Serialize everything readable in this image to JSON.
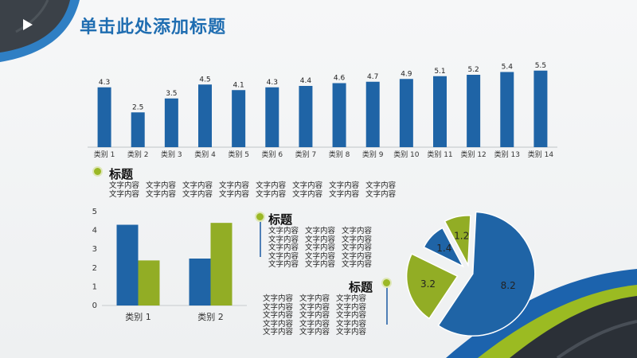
{
  "title": "单击此处添加标题",
  "colors": {
    "blue": "#1f64a6",
    "green": "#92ad25",
    "title": "#1f6db1"
  },
  "icons": {
    "play": "play-triangle-icon"
  },
  "chart_data": [
    {
      "type": "bar",
      "categories": [
        "类别 1",
        "类别 2",
        "类别 3",
        "类别 4",
        "类别 5",
        "类别 6",
        "类别 7",
        "类别 8",
        "类别 9",
        "类别 10",
        "类别 11",
        "类别 12",
        "类别 13",
        "类别 14"
      ],
      "values": [
        4.3,
        2.5,
        3.5,
        4.5,
        4.1,
        4.3,
        4.4,
        4.6,
        4.7,
        4.9,
        5.1,
        5.2,
        5.4,
        5.5
      ],
      "value_labels": [
        "4.3",
        "2.5",
        "3.5",
        "4.5",
        "4.1",
        "4.3",
        "4.4",
        "4.6",
        "4.7",
        "4.9",
        "5.1",
        "5.2",
        "5.4",
        "5.5"
      ],
      "ylim": [
        0,
        6
      ],
      "grid": false
    },
    {
      "type": "bar",
      "categories": [
        "类别 1",
        "类别 2"
      ],
      "series": [
        {
          "values": [
            4.3,
            2.5
          ],
          "color": "#1f64a6"
        },
        {
          "values": [
            2.4,
            4.4
          ],
          "color": "#92ad25"
        }
      ],
      "ylim": [
        0,
        5
      ],
      "yticks": [
        "0",
        "1",
        "2",
        "3",
        "4",
        "5"
      ],
      "grid": false
    },
    {
      "type": "pie",
      "values": [
        8.2,
        3.2,
        1.4,
        1.2
      ],
      "value_labels": [
        "8.2",
        "3.2",
        "1.4",
        "1.2"
      ],
      "colors": [
        "#1f64a6",
        "#92ad25",
        "#1f64a6",
        "#92ad25"
      ],
      "exploded": true
    }
  ],
  "textboxes": [
    {
      "head": "标题",
      "columns": [
        [
          "文字内容",
          "文字内容"
        ],
        [
          "文字内容",
          "文字内容"
        ],
        [
          "文字内容",
          "文字内容"
        ],
        [
          "文字内容",
          "文字内容"
        ],
        [
          "文字内容",
          "文字内容"
        ],
        [
          "文字内容",
          "文字内容"
        ],
        [
          "文字内容",
          "文字内容"
        ],
        [
          "文字内容",
          "文字内容"
        ]
      ]
    },
    {
      "head": "标题",
      "columns": [
        [
          "文字内容",
          "文字内容",
          "文字内容",
          "文字内容",
          "文字内容"
        ],
        [
          "文字内容",
          "文字内容",
          "文字内容",
          "文字内容",
          "文字内容"
        ],
        [
          "文字内容",
          "文字内容",
          "文字内容",
          "文字内容",
          "文字内容"
        ]
      ]
    },
    {
      "head": "标题",
      "columns": [
        [
          "文字内容",
          "文字内容",
          "文字内容",
          "文字内容",
          "文字内容"
        ],
        [
          "文字内容",
          "文字内容",
          "文字内容",
          "文字内容",
          "文字内容"
        ],
        [
          "文字内容",
          "文字内容",
          "文字内容",
          "文字内容",
          "文字内容"
        ]
      ]
    }
  ]
}
